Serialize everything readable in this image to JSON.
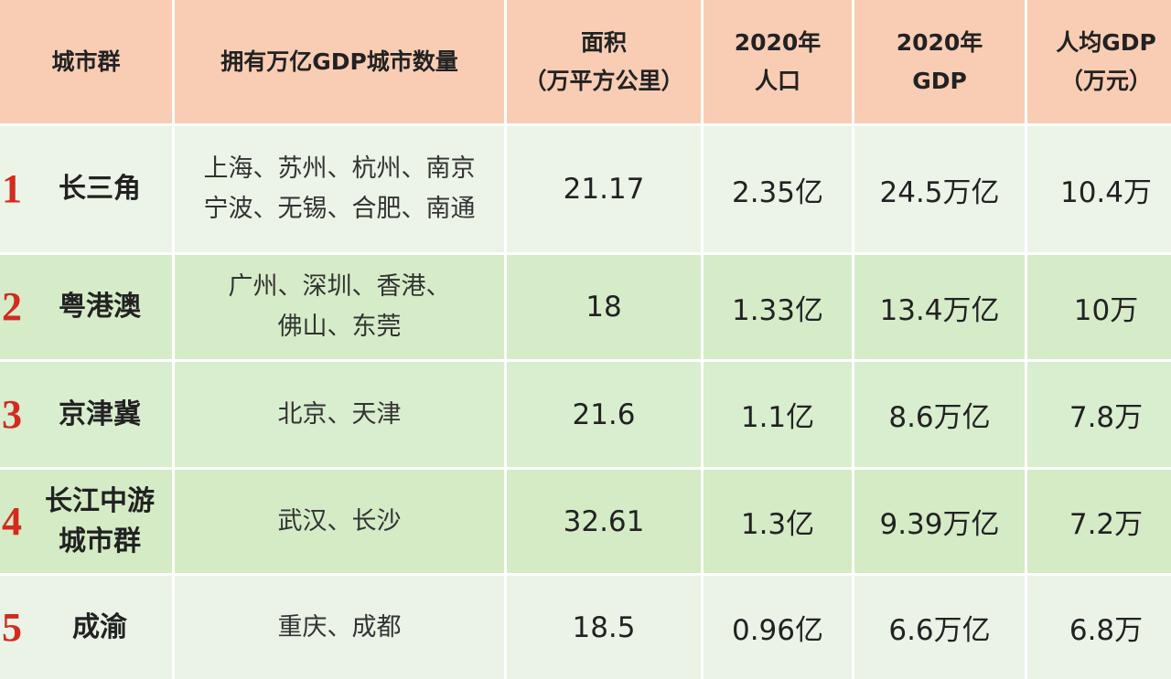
{
  "table": {
    "header": [
      [
        "城市群"
      ],
      [
        "拥有万亿GDP城市数量"
      ],
      [
        "面积",
        "（万平方公里）"
      ],
      [
        "2020年",
        "人口"
      ],
      [
        "2020年",
        "GDP"
      ],
      [
        "人均GDP",
        "（万元）"
      ]
    ],
    "rows": [
      {
        "rank": "1",
        "name": [
          "长三角"
        ],
        "cities": [
          "上海、苏州、杭州、南京",
          "宁波、无锡、合肥、南通"
        ],
        "area": "21.17",
        "population": "2.35亿",
        "gdp": "24.5万亿",
        "per_capita": "10.4万"
      },
      {
        "rank": "2",
        "name": [
          "粤港澳"
        ],
        "cities": [
          "广州、深圳、香港、",
          "佛山、东莞"
        ],
        "area": "18",
        "population": "1.33亿",
        "gdp": "13.4万亿",
        "per_capita": "10万"
      },
      {
        "rank": "3",
        "name": [
          "京津冀"
        ],
        "cities": [
          "北京、天津"
        ],
        "area": "21.6",
        "population": "1.1亿",
        "gdp": "8.6万亿",
        "per_capita": "7.8万"
      },
      {
        "rank": "4",
        "name": [
          "长江中游",
          "城市群"
        ],
        "cities": [
          "武汉、长沙"
        ],
        "area": "32.61",
        "population": "1.3亿",
        "gdp": "9.39万亿",
        "per_capita": "7.2万"
      },
      {
        "rank": "5",
        "name": [
          "成渝"
        ],
        "cities": [
          "重庆、成都"
        ],
        "area": "18.5",
        "population": "0.96亿",
        "gdp": "6.6万亿",
        "per_capita": "6.8万"
      }
    ]
  }
}
